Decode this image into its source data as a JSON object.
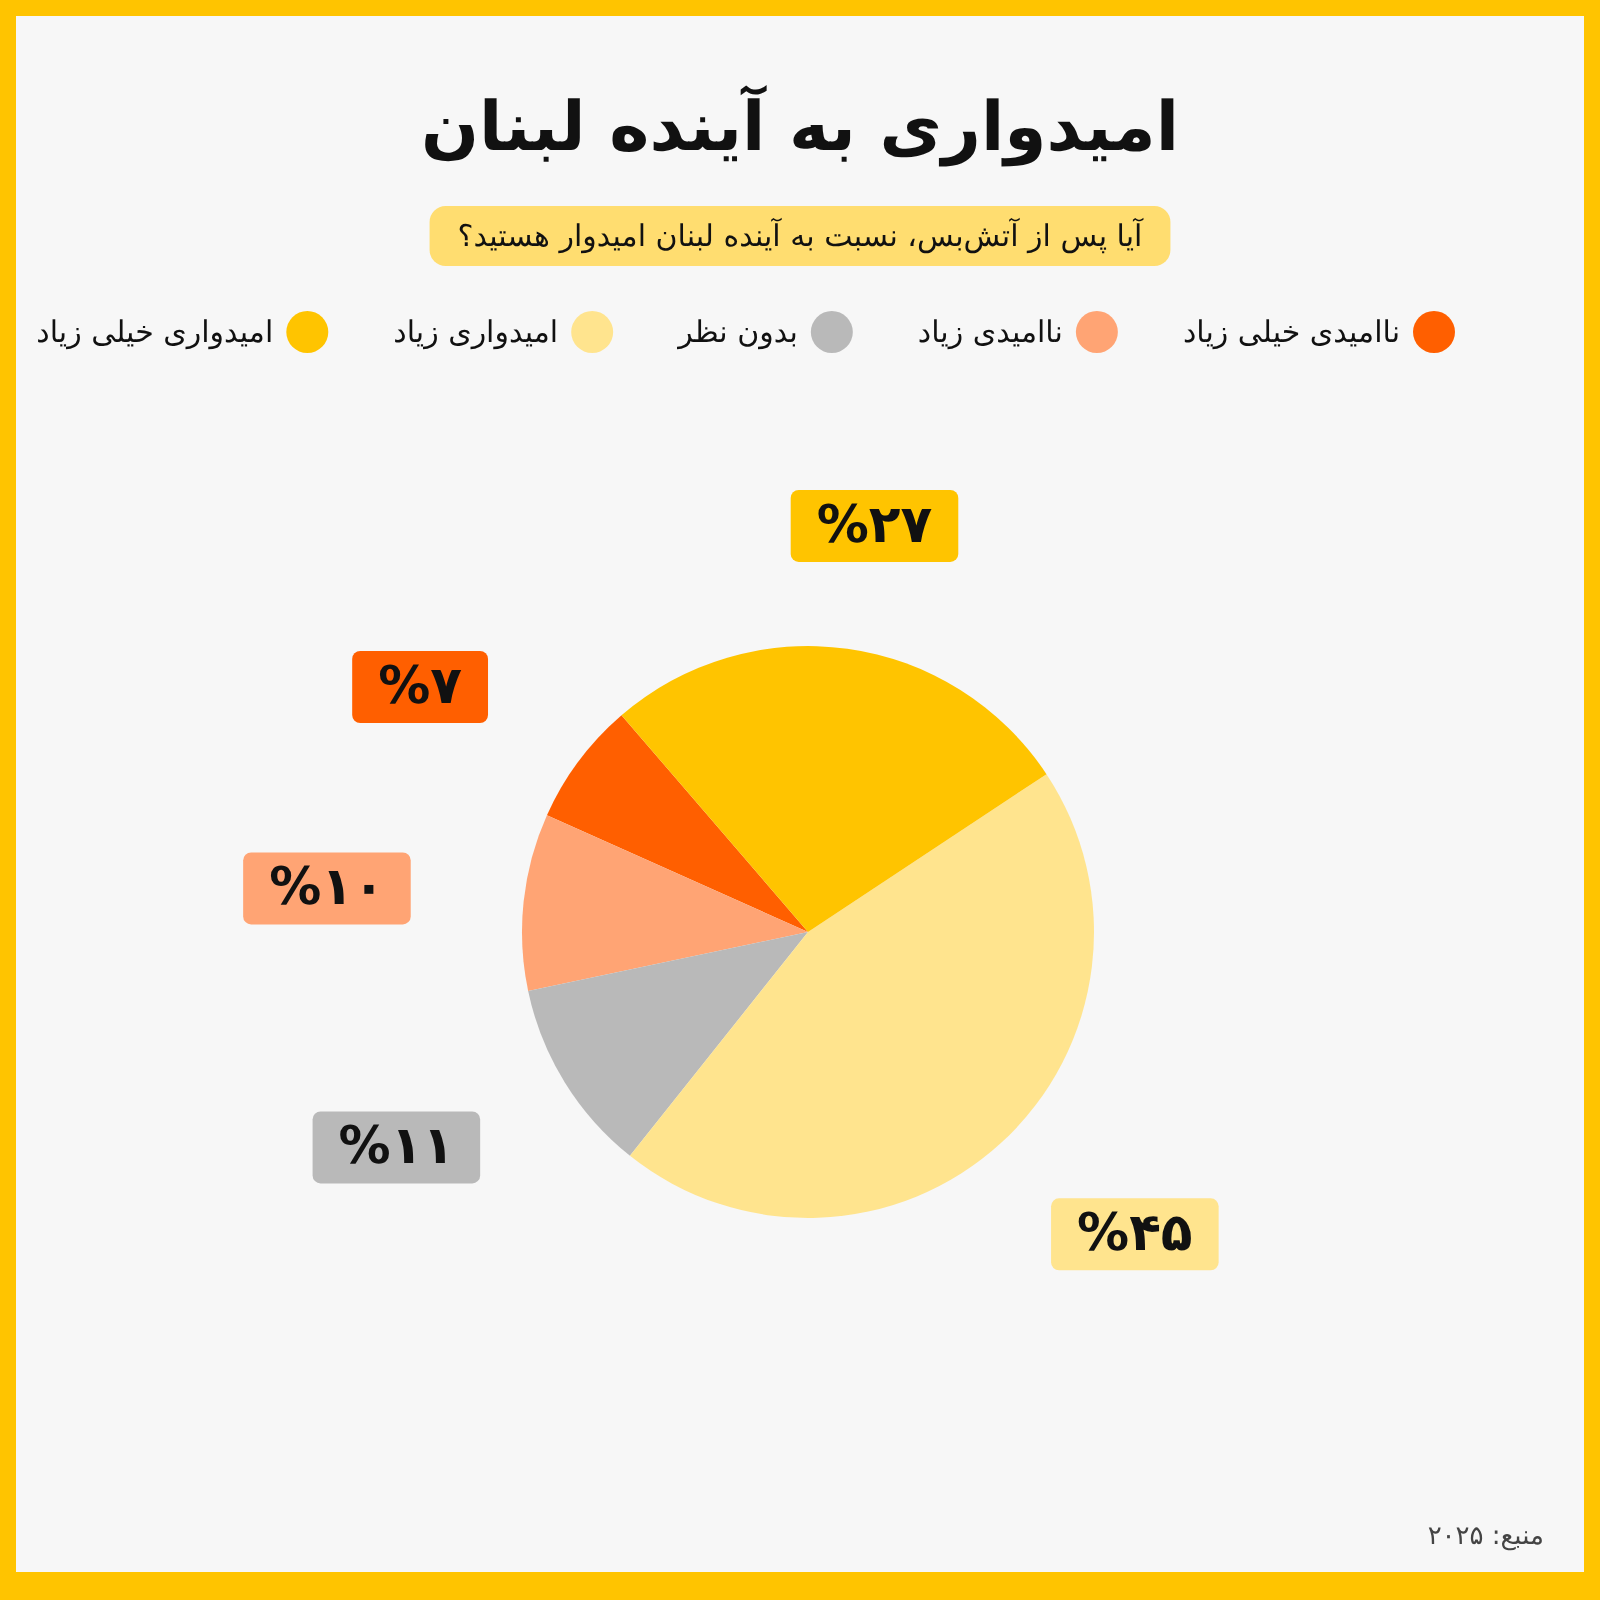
{
  "chart_data": {
    "type": "pie",
    "title": "امیدواری به آینده لبنان",
    "subtitle": "آیا پس از آتش‌بس، نسبت به آینده لبنان امیدوار هستید؟",
    "categories": [
      "ناامیدی خیلی زیاد",
      "ناامیدی زیاد",
      "بدون نظر",
      "امیدواری زیاد",
      "امیدواری خیلی زیاد"
    ],
    "values": [
      7,
      10,
      11,
      45,
      27
    ],
    "colors": [
      "#ff5f00",
      "#ffa474",
      "#b9b9b9",
      "#ffe48e",
      "#ffc400"
    ],
    "value_labels": [
      "%۷",
      "%۱۰",
      "%۱۱",
      "%۴۵",
      "%۲۷"
    ],
    "legend": "top",
    "annotations": [
      "منبع: ۲۰۲۵"
    ]
  }
}
